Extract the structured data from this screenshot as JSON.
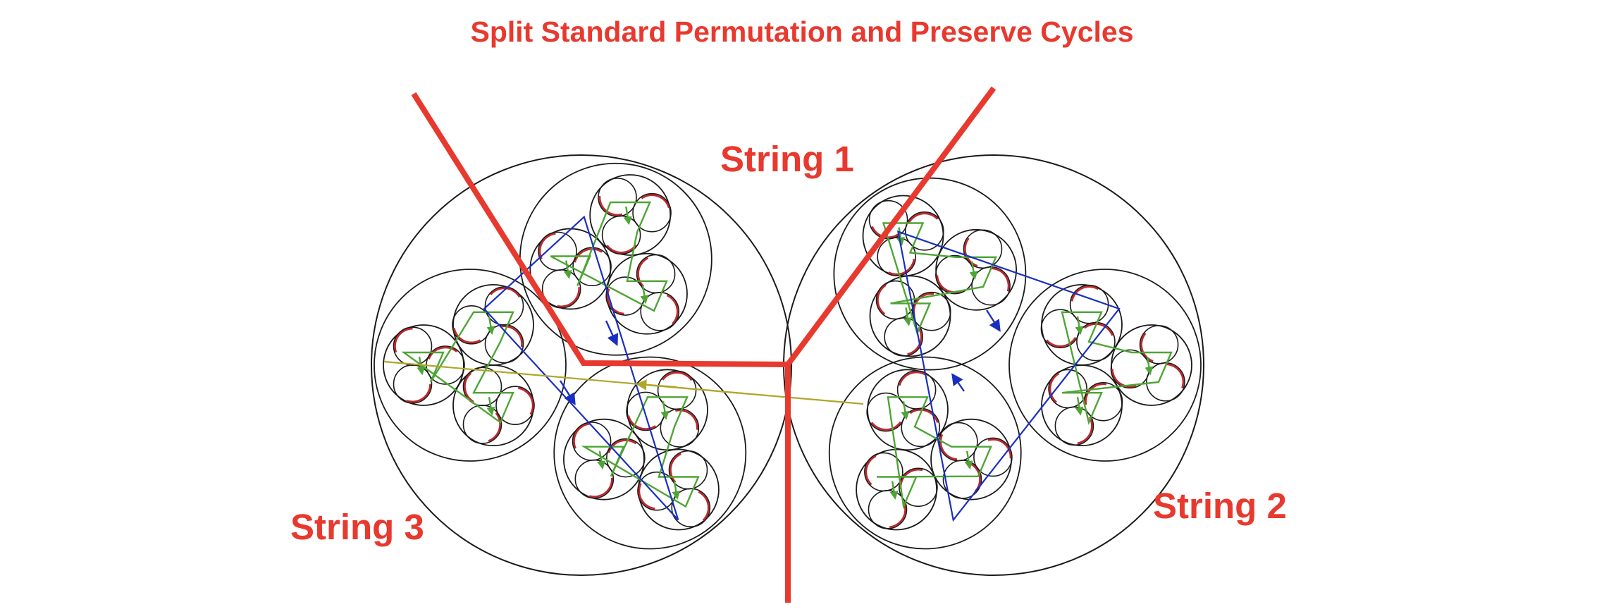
{
  "title": "Split Standard Permutation and Preserve Cycles",
  "labels": {
    "string1": "String 1",
    "string2": "String 2",
    "string3": "String 3"
  },
  "colors": {
    "text_accent": "#e8392f",
    "cut_line": "#e8392f",
    "circle_stroke": "#1a1a1a",
    "arc_red": "#c0282c",
    "path_green": "#4ea535",
    "path_blue": "#1a2fbf",
    "arrow_olive": "#b0a62a"
  },
  "diagram": {
    "outer_groups": 2,
    "sub_clusters_per_group": 3,
    "mini_clusters_per_sub": 3,
    "circles_per_mini": 3
  }
}
